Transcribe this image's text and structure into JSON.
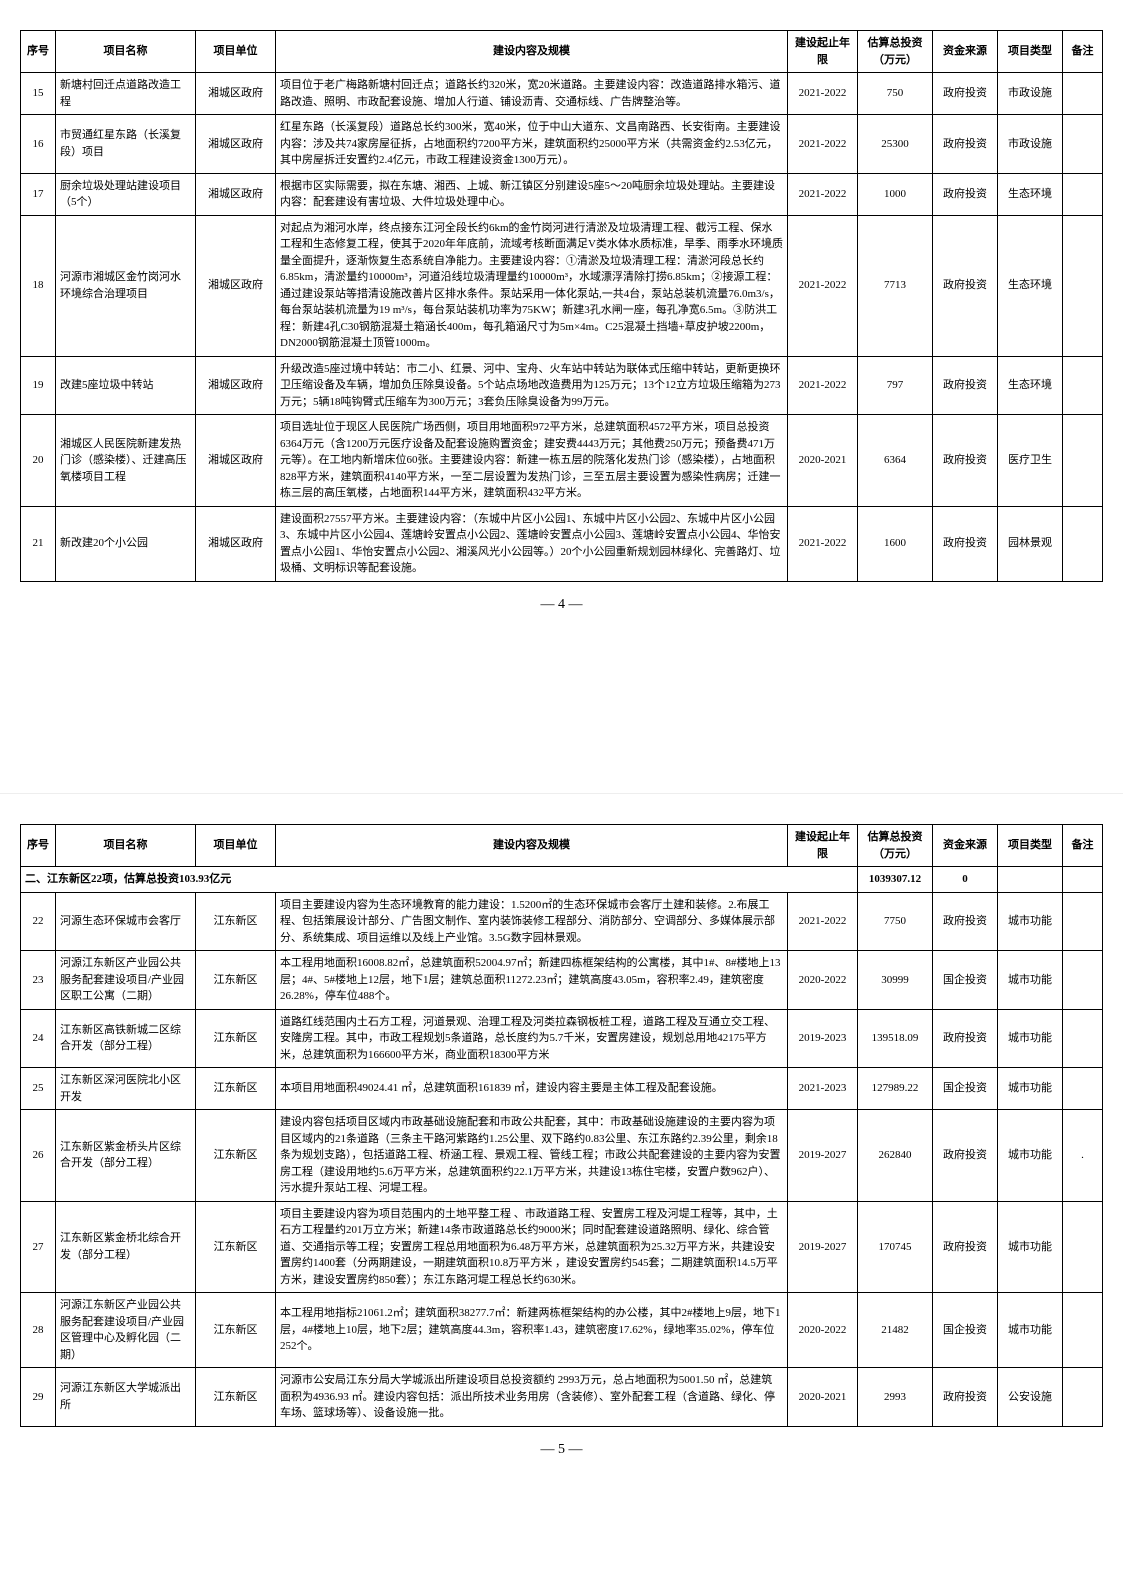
{
  "headers": {
    "seq": "序号",
    "name": "项目名称",
    "unit": "项目单位",
    "content": "建设内容及规模",
    "period": "建设起止年限",
    "investment": "估算总投资（万元）",
    "source": "资金来源",
    "type": "项目类型",
    "note": "备注"
  },
  "page1_rows": [
    {
      "seq": "15",
      "name": "新塘村回迁点道路改造工程",
      "unit": "湘城区政府",
      "content": "项目位于老广梅路新塘村回迁点；道路长约320米，宽20米道路。主要建设内容：改造道路排水箱污、道路改造、照明、市政配套设施、增加人行道、铺设沥青、交通标线、广告牌整治等。",
      "period": "2021-2022",
      "investment": "750",
      "source": "政府投资",
      "type": "市政设施",
      "note": ""
    },
    {
      "seq": "16",
      "name": "市贸通红星东路（长溪复段）项目",
      "unit": "湘城区政府",
      "content": "红星东路（长溪复段）道路总长约300米，宽40米，位于中山大道东、文昌南路西、长安街南。主要建设内容：涉及共74家房屋征拆，占地面积约7200平方米，建筑面积约25000平方米（共需资金约2.53亿元，其中房屋拆迁安置约2.4亿元，市政工程建设资金1300万元）。",
      "period": "2021-2022",
      "investment": "25300",
      "source": "政府投资",
      "type": "市政设施",
      "note": ""
    },
    {
      "seq": "17",
      "name": "厨余垃圾处理站建设项目（5个）",
      "unit": "湘城区政府",
      "content": "根据市区实际需要，拟在东塘、湘西、上城、新江镇区分别建设5座5～20吨厨余垃圾处理站。主要建设内容：配套建设有害垃圾、大件垃圾处理中心。",
      "period": "2021-2022",
      "investment": "1000",
      "source": "政府投资",
      "type": "生态环境",
      "note": ""
    },
    {
      "seq": "18",
      "name": "河源市湘城区金竹岗河水环境综合治理项目",
      "unit": "湘城区政府",
      "content": "对起点为湘河水岸，终点接东江河全段长约6km的金竹岗河进行清淤及垃圾清理工程、截污工程、保水工程和生态修复工程，使其于2020年年底前，流域考核断面满足V类水体水质标准，旱季、雨季水环境质量全面提升，逐渐恢复生态系统自净能力。主要建设内容：①清淤及垃圾清理工程：清淤河段总长约6.85km，清淤量约10000m³，河道沿线垃圾清理量约10000m³，水域漂浮清除打捞6.85km；②接源工程：通过建设泵站等措清设施改善片区排水条件。泵站采用一体化泵站,一共4台，泵站总装机流量76.0m3/s，每台泵站装机流量为19 m³/s，每台泵站装机功率为75KW；新建3孔水闸一座，每孔净宽6.5m。③防洪工程：新建4孔C30钢筋混凝土箱涵长400m，每孔箱涵尺寸为5m×4m。C25混凝土挡墙+草皮护坡2200m，DN2000钢筋混凝土顶管1000m。",
      "period": "2021-2022",
      "investment": "7713",
      "source": "政府投资",
      "type": "生态环境",
      "note": ""
    },
    {
      "seq": "19",
      "name": "改建5座垃圾中转站",
      "unit": "湘城区政府",
      "content": "升级改造5座过境中转站：市二小、红景、河中、宝舟、火车站中转站为联体式压缩中转站，更新更换环卫压缩设备及车辆，增加负压除臭设备。5个站点场地改造费用为125万元；13个12立方垃圾压缩箱为273万元；5辆18吨钩臂式压缩车为300万元；3套负压除臭设备为99万元。",
      "period": "2021-2022",
      "investment": "797",
      "source": "政府投资",
      "type": "生态环境",
      "note": ""
    },
    {
      "seq": "20",
      "name": "湘城区人民医院新建发热门诊（感染楼）、迁建高压氧楼项目工程",
      "unit": "湘城区政府",
      "content": "项目选址位于现区人民医院广场西侧，项目用地面积972平方米，总建筑面积4572平方米，项目总投资6364万元（含1200万元医疗设备及配套设施购置资金；建安费4443万元；其他费250万元；预备费471万元等）。在工地内新增床位60张。主要建设内容：新建一栋五层的院落化发热门诊（感染楼），占地面积828平方米，建筑面积4140平方米，一至二层设置为发热门诊，三至五层主要设置为感染性病房；迁建一栋三层的高压氧楼，占地面积144平方米，建筑面积432平方米。",
      "period": "2020-2021",
      "investment": "6364",
      "source": "政府投资",
      "type": "医疗卫生",
      "note": ""
    },
    {
      "seq": "21",
      "name": "新改建20个小公园",
      "unit": "湘城区政府",
      "content": "建设面积27557平方米。主要建设内容：（东城中片区小公园1、东城中片区小公园2、东城中片区小公园3、东城中片区小公园4、莲塘岭安置点小公园2、莲塘岭安置点小公园3、莲塘岭安置点小公园4、华怡安置点小公园1、华怡安置点小公园2、湘溪风光小公园等。）20个小公园重新规划园林绿化、完善路灯、垃圾桶、文明标识等配套设施。",
      "period": "2021-2022",
      "investment": "1600",
      "source": "政府投资",
      "type": "园林景观",
      "note": ""
    }
  ],
  "page1_num": "— 4 —",
  "section2": {
    "title": "二、江东新区22项，估算总投资103.93亿元",
    "investment": "1039307.12",
    "source": "0"
  },
  "page2_rows": [
    {
      "seq": "22",
      "name": "河源生态环保城市会客厅",
      "unit": "江东新区",
      "content": "项目主要建设内容为生态环境教育的能力建设：1.5200㎡的生态环保城市会客厅土建和装修。2.布展工程、包括策展设计部分、广告图文制作、室内装饰装修工程部分、消防部分、空调部分、多媒体展示部分、系统集成、项目运维以及线上产业馆。3.5G数字园林景观。",
      "period": "2021-2022",
      "investment": "7750",
      "source": "政府投资",
      "type": "城市功能",
      "note": ""
    },
    {
      "seq": "23",
      "name": "河源江东新区产业园公共服务配套建设项目/产业园区职工公寓（二期）",
      "unit": "江东新区",
      "content": "本工程用地面积16008.82㎡，总建筑面积52004.97㎡；新建四栋框架结构的公寓楼，其中1#、8#楼地上13层；4#、5#楼地上12层，地下1层；建筑总面积11272.23㎡；建筑高度43.05m，容积率2.49，建筑密度26.28%，停车位488个。",
      "period": "2020-2022",
      "investment": "30999",
      "source": "国企投资",
      "type": "城市功能",
      "note": ""
    },
    {
      "seq": "24",
      "name": "江东新区高铁新城二区综合开发（部分工程）",
      "unit": "江东新区",
      "content": "道路红线范围内土石方工程，河道景观、治理工程及河类拉森钢板桩工程，道路工程及互通立交工程、安隆房工程。其中，市政工程规划5条道路，总长度约为5.7千米，安置房建设，规划总用地42175平方米，总建筑面积为166600平方米，商业面积18300平方米",
      "period": "2019-2023",
      "investment": "139518.09",
      "source": "政府投资",
      "type": "城市功能",
      "note": ""
    },
    {
      "seq": "25",
      "name": "江东新区深河医院北小区开发",
      "unit": "江东新区",
      "content": "本项目用地面积49024.41 ㎡，总建筑面积161839 ㎡，建设内容主要是主体工程及配套设施。",
      "period": "2021-2023",
      "investment": "127989.22",
      "source": "国企投资",
      "type": "城市功能",
      "note": ""
    },
    {
      "seq": "26",
      "name": "江东新区紫金桥头片区综合开发（部分工程）",
      "unit": "江东新区",
      "content": "建设内容包括项目区域内市政基础设施配套和市政公共配套，其中：市政基础设施建设的主要内容为项目区域内的21条道路（三条主干路河紫路约1.25公里、双下路约0.83公里、东江东路约2.39公里，剩余18条为规划支路），包括道路工程、桥涵工程、景观工程、管线工程；市政公共配套建设的主要内容为安置房工程（建设用地约5.6万平方米，总建筑面积约22.1万平方米，共建设13栋住宅楼，安置户数962户）、污水提升泵站工程、河堤工程。",
      "period": "2019-2027",
      "investment": "262840",
      "source": "政府投资",
      "type": "城市功能",
      "note": "."
    },
    {
      "seq": "27",
      "name": "江东新区紫金桥北综合开发（部分工程）",
      "unit": "江东新区",
      "content": "项目主要建设内容为项目范围内的土地平整工程 、市政道路工程、安置房工程及河堤工程等，其中，土石方工程量约201万立方米；新建14条市政道路总长约9000米；同时配套建设道路照明、绿化、综合管道、交通指示等工程；安置房工程总用地面积为6.48万平方米，总建筑面积为25.32万平方米，共建设安置房约1400套（分两期建设，一期建筑面积10.8万平方米 ，建设安置房约545套；二期建筑面积14.5万平方米，建设安置房约850套）；东江东路河堤工程总长约630米。",
      "period": "2019-2027",
      "investment": "170745",
      "source": "政府投资",
      "type": "城市功能",
      "note": ""
    },
    {
      "seq": "28",
      "name": "河源江东新区产业园公共服务配套建设项目/产业园区管理中心及孵化园（二期）",
      "unit": "江东新区",
      "content": "本工程用地指标21061.2㎡；建筑面积38277.7㎡：新建两栋框架结构的办公楼，其中2#楼地上9层，地下1层，4#楼地上10层，地下2层；建筑高度44.3m，容积率1.43，建筑密度17.62%，绿地率35.02%，停车位252个。",
      "period": "2020-2022",
      "investment": "21482",
      "source": "国企投资",
      "type": "城市功能",
      "note": ""
    },
    {
      "seq": "29",
      "name": "河源江东新区大学城派出所",
      "unit": "江东新区",
      "content": "河源市公安局江东分局大学城派出所建设项目总投资额约 2993万元，总占地面积为5001.50 ㎡，总建筑面积为4936.93 ㎡。建设内容包括：派出所技术业务用房（含装修）、室外配套工程（含道路、绿化、停车场、篮球场等）、设备设施一批。",
      "period": "2020-2021",
      "investment": "2993",
      "source": "政府投资",
      "type": "公安设施",
      "note": ""
    }
  ],
  "page2_num": "— 5 —"
}
